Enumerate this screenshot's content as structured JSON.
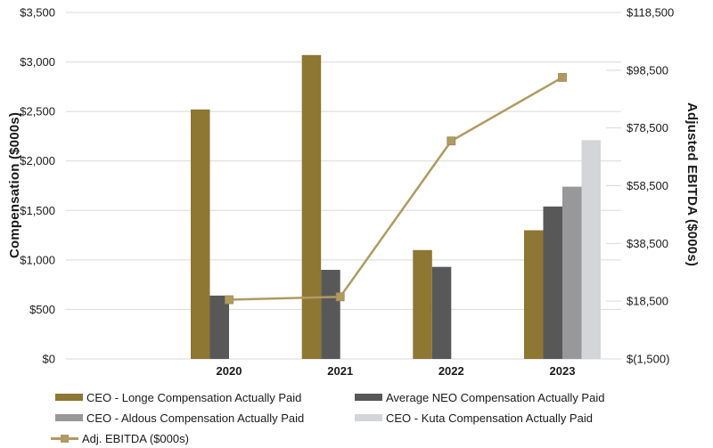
{
  "chart_data": {
    "type": "bar+line combo, dual axis",
    "categories": [
      "2020",
      "2021",
      "2022",
      "2023"
    ],
    "series": [
      {
        "name": "CEO - Longe Compensation Actually Paid",
        "type": "bar",
        "axis": "left",
        "color": "#8E7633",
        "values": [
          2520,
          3070,
          1100,
          1300
        ]
      },
      {
        "name": "Average NEO Compensation Actually Paid",
        "type": "bar",
        "axis": "left",
        "color": "#595859",
        "values": [
          640,
          900,
          930,
          1540
        ]
      },
      {
        "name": "CEO - Aldous Compensation Actually Paid",
        "type": "bar",
        "axis": "left",
        "color": "#98979A",
        "values": [
          null,
          null,
          null,
          1740
        ]
      },
      {
        "name": "CEO - Kuta Compensation Actually Paid",
        "type": "bar",
        "axis": "left",
        "color": "#D4D5D8",
        "values": [
          null,
          null,
          null,
          2210
        ]
      },
      {
        "name": "Adj. EBITDA ($000s)",
        "type": "line",
        "axis": "right",
        "color": "#B19A61",
        "marker": "square",
        "values": [
          19000,
          20000,
          74000,
          96000
        ]
      }
    ],
    "left_axis": {
      "title": "Compensation ($000s)",
      "min": 0,
      "max": 3500,
      "step": 500,
      "tick_labels": [
        "$0",
        "$500",
        "$1,000",
        "$1,500",
        "$2,000",
        "$2,500",
        "$3,000",
        "$3,500"
      ]
    },
    "right_axis": {
      "title": "Adjusted EBITDA ($000s)",
      "min": -1500,
      "max": 118500,
      "step": 20000,
      "tick_labels": [
        "$(1,500)",
        "$18,500",
        "$38,500",
        "$58,500",
        "$78,500",
        "$98,500",
        "$118,500"
      ]
    },
    "grid": true,
    "grid_color": "#D9D9D9",
    "legend_position": "bottom"
  }
}
